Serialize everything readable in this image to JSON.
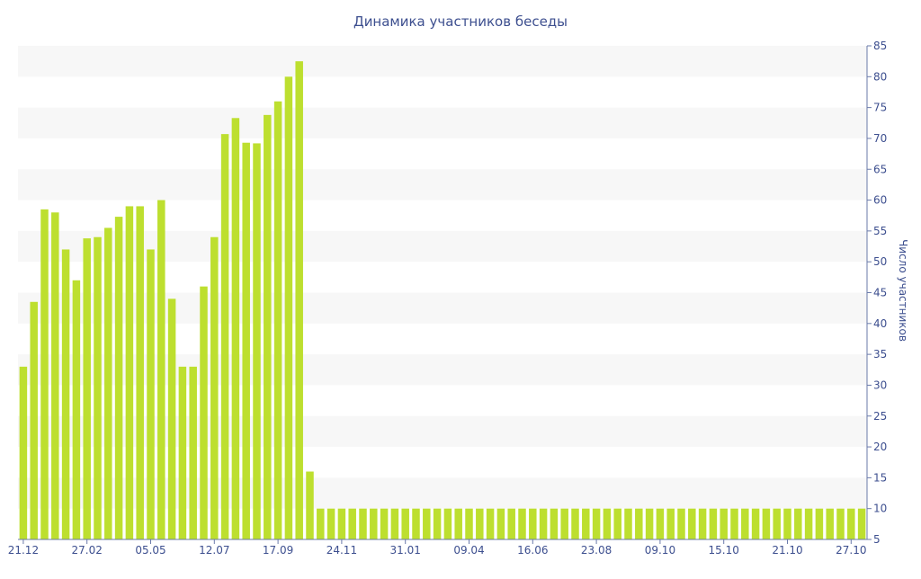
{
  "chart_data": {
    "type": "bar",
    "title": "Динамика участников беседы",
    "ylabel": "Число участников",
    "xlabel": "",
    "y_axis_side": "right",
    "ylim": [
      5,
      85
    ],
    "y_ticks": [
      5,
      10,
      15,
      20,
      25,
      30,
      35,
      40,
      45,
      50,
      55,
      60,
      65,
      70,
      75,
      80,
      85
    ],
    "grid": "alternating horizontal bands",
    "legend": "none",
    "x_tick_labels": [
      {
        "label": "21.12",
        "index": 0
      },
      {
        "label": "27.02",
        "index": 6
      },
      {
        "label": "05.05",
        "index": 12
      },
      {
        "label": "12.07",
        "index": 18
      },
      {
        "label": "17.09",
        "index": 24
      },
      {
        "label": "24.11",
        "index": 30
      },
      {
        "label": "31.01",
        "index": 36
      },
      {
        "label": "09.04",
        "index": 42
      },
      {
        "label": "16.06",
        "index": 48
      },
      {
        "label": "23.08",
        "index": 54
      },
      {
        "label": "09.10",
        "index": 60
      },
      {
        "label": "15.10",
        "index": 66
      },
      {
        "label": "21.10",
        "index": 72
      },
      {
        "label": "27.10",
        "index": 78
      }
    ],
    "values": [
      33,
      43.5,
      58.5,
      58,
      52,
      47,
      53.8,
      54,
      55.5,
      57.3,
      59,
      59,
      52,
      60,
      44,
      33,
      33,
      46,
      54,
      70.7,
      73.3,
      69.3,
      69.2,
      73.8,
      76,
      80,
      82.5,
      16,
      10,
      10,
      10,
      10,
      10,
      10,
      10,
      10,
      10,
      10,
      10,
      10,
      10,
      10,
      10,
      10,
      10,
      10,
      10,
      10,
      10,
      10,
      10,
      10,
      10,
      10,
      10,
      10,
      10,
      10,
      10,
      10,
      10,
      10,
      10,
      10,
      10,
      10,
      10,
      10,
      10,
      10,
      10,
      10,
      10,
      10,
      10,
      10,
      10,
      10,
      10,
      10
    ],
    "colors": {
      "bar": "#bddf2f",
      "text": "#3d4f8f",
      "band": "#f7f7f7",
      "axis": "#6a7aaa"
    }
  }
}
